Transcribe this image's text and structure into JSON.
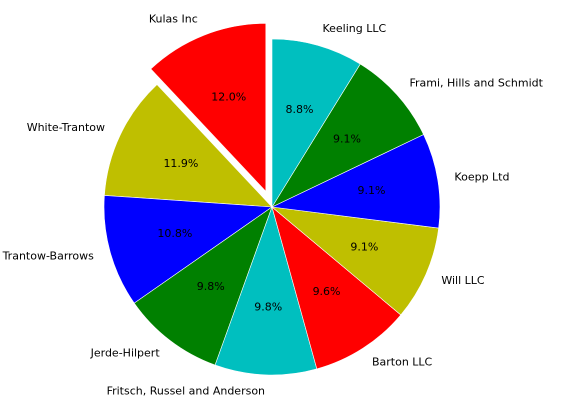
{
  "chart_data": {
    "type": "pie",
    "categories": [
      "Kulas Inc",
      "White-Trantow",
      "Trantow-Barrows",
      "Jerde-Hilpert",
      "Fritsch, Russel and Anderson",
      "Barton LLC",
      "Will LLC",
      "Koepp Ltd",
      "Frami, Hills and Schmidt",
      "Keeling LLC"
    ],
    "values": [
      12.0,
      11.9,
      10.8,
      9.8,
      9.8,
      9.6,
      9.1,
      9.1,
      9.1,
      8.8
    ],
    "value_labels": [
      "12.0%",
      "11.9%",
      "10.8%",
      "9.8%",
      "9.8%",
      "9.6%",
      "9.1%",
      "9.1%",
      "9.1%",
      "8.8%"
    ],
    "colors": [
      "#ff0000",
      "#bfbf00",
      "#0000ff",
      "#008000",
      "#00bfbf",
      "#ff0000",
      "#bfbf00",
      "#0000ff",
      "#008000",
      "#00bfbf"
    ],
    "explode": [
      0.1,
      0,
      0,
      0,
      0,
      0,
      0,
      0,
      0,
      0
    ]
  }
}
